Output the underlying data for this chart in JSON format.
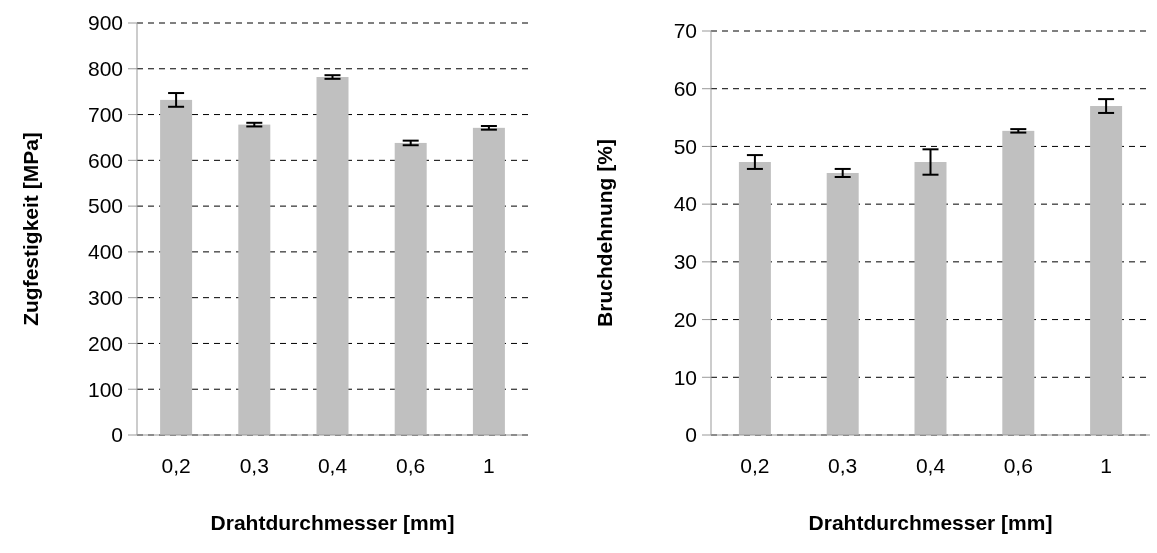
{
  "chart_data": [
    {
      "type": "bar",
      "ylabel": "Zugfestigkeit [MPa]",
      "xlabel": "Drahtdurchmesser [mm]",
      "categories": [
        "0,2",
        "0,3",
        "0,4",
        "0,6",
        "1"
      ],
      "values": [
        732,
        678,
        782,
        638,
        671
      ],
      "errors": [
        15,
        4,
        4,
        5,
        4
      ],
      "color": "#c0c0c0",
      "ylim": [
        0,
        900
      ],
      "yticks": [
        0,
        100,
        200,
        300,
        400,
        500,
        600,
        700,
        800,
        900
      ],
      "grid": "y"
    },
    {
      "type": "bar",
      "ylabel": "Bruchdehnung [%]",
      "xlabel": "Drahtdurchmesser [mm]",
      "categories": [
        "0,2",
        "0,3",
        "0,4",
        "0,6",
        "1"
      ],
      "values": [
        47.3,
        45.4,
        47.3,
        52.7,
        57.0
      ],
      "errors": [
        1.2,
        0.7,
        2.2,
        0.3,
        1.2
      ],
      "color": "#c0c0c0",
      "ylim": [
        0,
        70
      ],
      "yticks": [
        0,
        10,
        20,
        30,
        40,
        50,
        60,
        70
      ],
      "grid": "y"
    }
  ]
}
